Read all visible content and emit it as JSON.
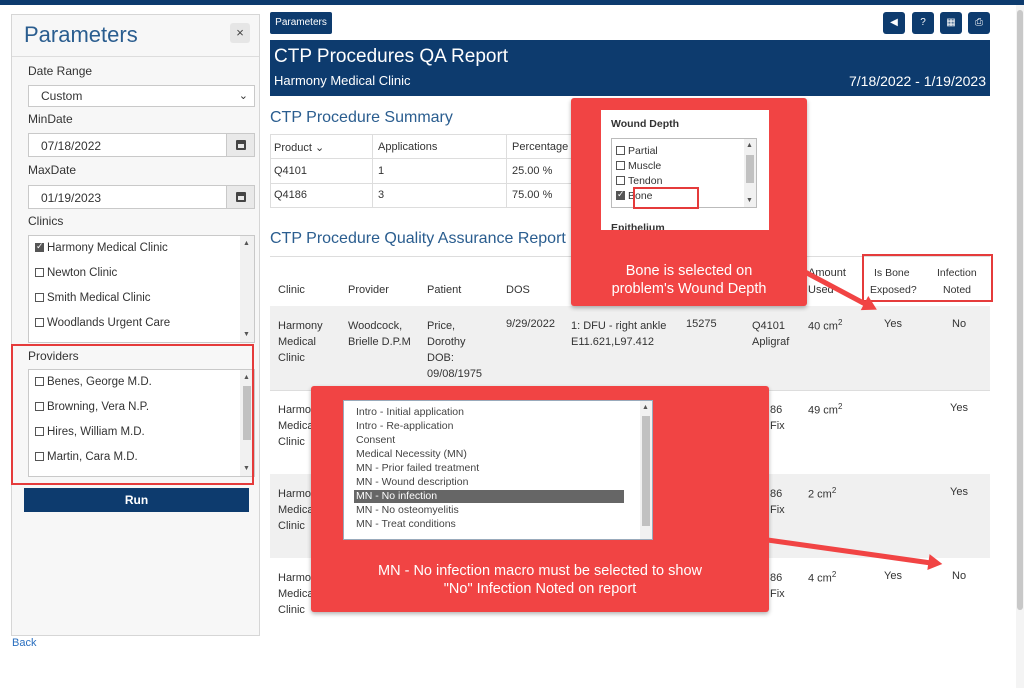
{
  "parameters": {
    "title": "Parameters",
    "close_label": "×",
    "date_range_label": "Date Range",
    "date_range_value": "Custom",
    "min_date_label": "MinDate",
    "min_date_value": "07/18/2022",
    "max_date_label": "MaxDate",
    "max_date_value": "01/19/2023",
    "clinics_label": "Clinics",
    "clinics": [
      {
        "label": "Harmony Medical Clinic",
        "checked": true
      },
      {
        "label": "Newton Clinic",
        "checked": false
      },
      {
        "label": "Smith Medical Clinic",
        "checked": false
      },
      {
        "label": "Woodlands Urgent Care",
        "checked": false
      }
    ],
    "providers_label": "Providers",
    "providers": [
      {
        "label": "Benes, George M.D.",
        "checked": false
      },
      {
        "label": "Browning, Vera N.P.",
        "checked": false
      },
      {
        "label": "Hires, William M.D.",
        "checked": false
      },
      {
        "label": "Martin, Cara M.D.",
        "checked": false
      }
    ],
    "run_label": "Run",
    "back_label": "Back"
  },
  "toolbar": {
    "parameters_label": "Parameters",
    "icons": [
      "back-icon",
      "help-icon",
      "grid-icon",
      "print-icon"
    ]
  },
  "report": {
    "title": "CTP Procedures QA Report",
    "clinic": "Harmony Medical Clinic",
    "date_range": "7/18/2022 - 1/19/2023",
    "summary_title": "CTP Procedure Summary",
    "summary_headers": [
      "Product",
      "Applications",
      "Percentage"
    ],
    "summary_rows": [
      [
        "Q4101",
        "1",
        "25.00 %"
      ],
      [
        "Q4186",
        "3",
        "75.00 %"
      ]
    ],
    "qa_title": "CTP Procedure Quality Assurance Report",
    "qa_headers": {
      "clinic": "Clinic",
      "provider": "Provider",
      "patient": "Patient",
      "dos": "DOS",
      "amount": "Amount",
      "amount2": "Used",
      "bone": "Is Bone",
      "bone2": "Exposed?",
      "infection": "Infection",
      "infection2": "Noted"
    },
    "row1": {
      "clinic": [
        "Harmony",
        "Medical",
        "Clinic"
      ],
      "provider": [
        "Woodcock,",
        "Brielle D.P.M"
      ],
      "patient": [
        "Price,",
        "Dorothy",
        "DOB:",
        "09/08/1975"
      ],
      "dos": "9/29/2022",
      "diag1": "1: DFU - right ankle",
      "diag2": "E11.621,L97.412",
      "cpt": "15275",
      "product1": "Q4101",
      "product2": "Apligraf",
      "amount": "40 cm",
      "bone": "Yes",
      "infection": "No"
    },
    "row2": {
      "clinic": [
        "Harmo",
        "Medica",
        "Clinic"
      ],
      "product1": "86",
      "product2": "Fix",
      "amount": "49 cm",
      "infection": "Yes"
    },
    "row3": {
      "clinic": [
        "Harmo",
        "Medica",
        "Clinic"
      ],
      "product1": "86",
      "product2": "Fix",
      "amount": "2 cm",
      "infection": "Yes"
    },
    "row4": {
      "clinic": [
        "Harmo",
        "Medica",
        "Clinic"
      ],
      "product1": "86",
      "product2": "Fix",
      "amount": "4 cm",
      "bone": "Yes",
      "infection": "No"
    },
    "sup": "2"
  },
  "callout_wound": {
    "title": "Wound Depth",
    "items": [
      {
        "label": "Partial",
        "checked": false
      },
      {
        "label": "Muscle",
        "checked": false
      },
      {
        "label": "Tendon",
        "checked": false
      },
      {
        "label": "Bone",
        "checked": true
      }
    ],
    "below_label": "Epithelium",
    "text1": "Bone is selected on",
    "text2": "problem's Wound Depth"
  },
  "callout_macro": {
    "items": [
      "Intro - Initial application",
      "Intro - Re-application",
      "Consent",
      "Medical Necessity (MN)",
      "MN - Prior failed treatment",
      "MN - Wound description",
      "MN - No infection",
      "MN - No osteomyelitis",
      "MN - Treat conditions"
    ],
    "selected_index": 6,
    "text1": "MN - No infection macro must be selected to show",
    "text2": "\"No\" Infection Noted on report"
  },
  "colors": {
    "navy": "#0d3b6e",
    "accent_blue": "#2a5d8f",
    "callout_red": "#f14444"
  }
}
